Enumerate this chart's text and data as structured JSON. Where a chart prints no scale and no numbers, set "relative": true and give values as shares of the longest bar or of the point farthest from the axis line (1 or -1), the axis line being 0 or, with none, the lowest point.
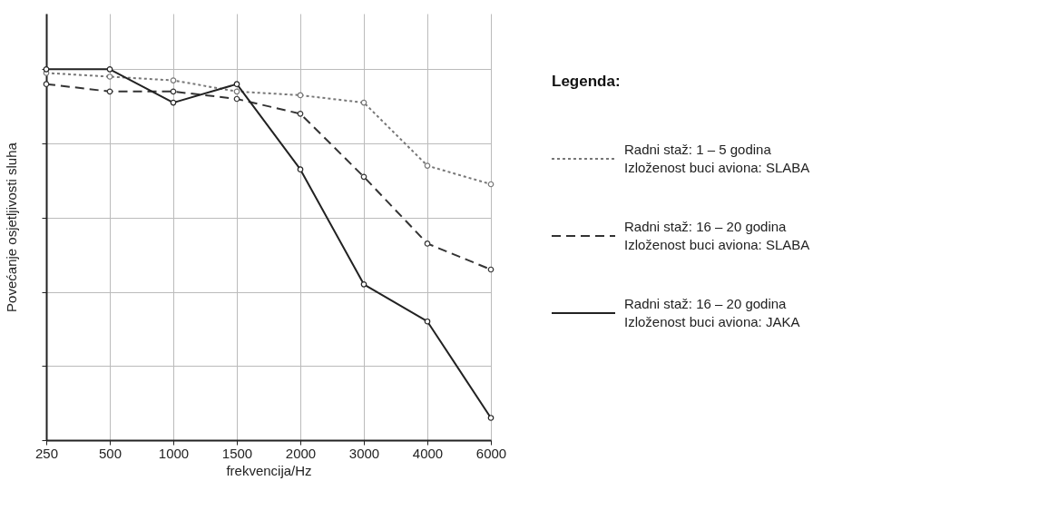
{
  "chart_data": {
    "type": "line",
    "relative": true,
    "xlabel": "frekvencija/Hz",
    "ylabel": "Povećanje osjetljivosti sluha",
    "legend_title": "Legenda:",
    "legend": "right",
    "grid": true,
    "marker": "circle",
    "categories": [
      "250",
      "500",
      "1000",
      "1500",
      "2000",
      "3000",
      "4000",
      "6000"
    ],
    "series": [
      {
        "name": "Radni staž: 1 – 5 godina\nIzloženost buci aviona:  SLABA",
        "color": "#777777",
        "line_style": "dotted",
        "values": [
          0.99,
          0.98,
          0.97,
          0.94,
          0.93,
          0.91,
          0.74,
          0.69
        ]
      },
      {
        "name": "Radni staž: 16 – 20 godina\nIzloženost buci aviona:  SLABA",
        "color": "#333333",
        "line_style": "dashed",
        "values": [
          0.96,
          0.94,
          0.94,
          0.92,
          0.88,
          0.71,
          0.53,
          0.46
        ]
      },
      {
        "name": "Radni staž: 16 – 20 godina\nIzloženost buci aviona:  JAKA",
        "color": "#222222",
        "line_style": "solid",
        "values": [
          1,
          1,
          0.91,
          0.96,
          0.73,
          0.42,
          0.32,
          0.06
        ]
      }
    ]
  }
}
